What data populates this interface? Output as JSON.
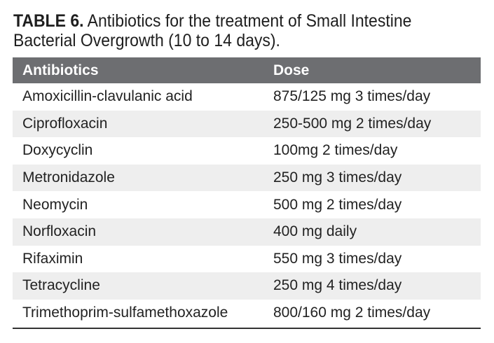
{
  "caption": {
    "label": "TABLE 6.",
    "text": " Antibiotics for the treatment of Small Intestine Bacterial Overgrowth (10 to 14 days)."
  },
  "table": {
    "headers": [
      "Antibiotics",
      "Dose"
    ],
    "rows": [
      [
        "Amoxicillin-clavulanic acid",
        "875/125 mg 3 times/day"
      ],
      [
        "Ciprofloxacin",
        "250-500 mg 2 times/day"
      ],
      [
        "Doxycyclin",
        "100mg 2 times/day"
      ],
      [
        "Metronidazole",
        "250 mg 3 times/day"
      ],
      [
        "Neomycin",
        "500 mg 2 times/day"
      ],
      [
        "Norfloxacin",
        "400 mg daily"
      ],
      [
        "Rifaximin",
        "550 mg 3 times/day"
      ],
      [
        "Tetracycline",
        "250 mg 4 times/day"
      ],
      [
        "Trimethoprim-sulfamethoxazole",
        "800/160 mg 2 times/day"
      ]
    ]
  },
  "colors": {
    "header_bg": "#6d6e71",
    "alt_row_bg": "#eeeeee",
    "text": "#1e1e1e"
  }
}
